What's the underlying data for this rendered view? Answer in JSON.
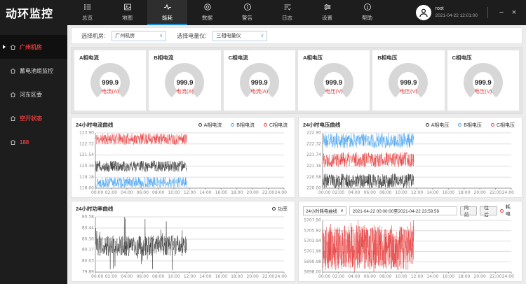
{
  "app": {
    "title": "动环监控"
  },
  "icons": {
    "chevron_down": "∨",
    "minimize": "−",
    "close": "×"
  },
  "colors": {
    "accent_blue": "#1e88e5",
    "alarm_red": "#e23b3b",
    "series_black": "#333333",
    "series_blue": "#4aa3f0",
    "series_red": "#e64040",
    "gauge_gray": "#d7d7d7"
  },
  "topbar": {
    "nav": [
      {
        "key": "overview",
        "label": "总览",
        "icon": "list",
        "active": false
      },
      {
        "key": "map",
        "label": "地图",
        "icon": "map",
        "active": false
      },
      {
        "key": "energy",
        "label": "能耗",
        "icon": "pulse",
        "active": true
      },
      {
        "key": "data",
        "label": "数据",
        "icon": "target",
        "active": false
      },
      {
        "key": "alerts",
        "label": "警告",
        "icon": "info-circle",
        "active": false
      },
      {
        "key": "logs",
        "label": "日志",
        "icon": "filter",
        "active": false
      },
      {
        "key": "settings",
        "label": "设置",
        "icon": "sliders",
        "active": false
      },
      {
        "key": "help",
        "label": "帮助",
        "icon": "help-circle",
        "active": false
      }
    ],
    "user": {
      "name": "root",
      "datetime": "2021-04-22 12:01:00"
    }
  },
  "sidebar": {
    "items": [
      {
        "label": "广州机房",
        "selected": true,
        "alarm": true
      },
      {
        "label": "蓄电池组监控",
        "selected": false,
        "alarm": false
      },
      {
        "label": "河东区委",
        "selected": false,
        "alarm": false
      },
      {
        "label": "空开状态",
        "selected": false,
        "alarm": true
      },
      {
        "label": "188",
        "selected": false,
        "alarm": true
      }
    ]
  },
  "filters": {
    "room_label": "选择机房:",
    "room_value": "广州机房",
    "meter_label": "选择电量仪:",
    "meter_value": "三相电量仪"
  },
  "gauges": [
    {
      "title": "A相电流",
      "value": "999.9",
      "unit_label": "电流(A)"
    },
    {
      "title": "B相电流",
      "value": "999.9",
      "unit_label": "电流(A)"
    },
    {
      "title": "C相电流",
      "value": "999.9",
      "unit_label": "电流(A)"
    },
    {
      "title": "A相电压",
      "value": "999.9",
      "unit_label": "电压(V)"
    },
    {
      "title": "B相电压",
      "value": "999.9",
      "unit_label": "电压(V)"
    },
    {
      "title": "C相电压",
      "value": "999.9",
      "unit_label": "电压(V)"
    }
  ],
  "chart_data": [
    {
      "type": "line",
      "title": "24小时电流曲线",
      "legend": [
        {
          "name": "A相电流",
          "color": "#333333"
        },
        {
          "name": "B相电流",
          "color": "#4aa3f0"
        },
        {
          "name": "C相电流",
          "color": "#e64040"
        }
      ],
      "ylim": [
        118.0,
        123.9
      ],
      "yticks": [
        "123.90",
        "122.72",
        "121.54",
        "120.36",
        "119.18",
        "118.00"
      ],
      "xticks": [
        "00:00",
        "02:00",
        "04:00",
        "06:00",
        "08:00",
        "10:00",
        "12:00",
        "14:00",
        "16:00",
        "18:00",
        "20:00",
        "22:00",
        "24:00"
      ],
      "x_range_hours": [
        0,
        24
      ],
      "data_end_hour": 11.6,
      "points": 420,
      "grid": true,
      "legend_position": "top-right",
      "series": [
        {
          "name": "C相电流",
          "color": "#e64040",
          "mean": 123.25,
          "amplitude": 0.6,
          "seed": 11
        },
        {
          "name": "A相电流",
          "color": "#333333",
          "mean": 120.35,
          "amplitude": 0.6,
          "seed": 12
        },
        {
          "name": "B相电流",
          "color": "#4aa3f0",
          "mean": 118.62,
          "amplitude": 0.58,
          "seed": 13
        }
      ]
    },
    {
      "type": "line",
      "title": "24小时电压曲线",
      "legend": [
        {
          "name": "A相电压",
          "color": "#333333"
        },
        {
          "name": "B相电压",
          "color": "#4aa3f0"
        },
        {
          "name": "C相电压",
          "color": "#e64040"
        }
      ],
      "ylim": [
        220.0,
        222.9
      ],
      "yticks": [
        "222.90",
        "222.32",
        "221.74",
        "221.16",
        "220.58",
        "220.00"
      ],
      "xticks": [
        "00:00",
        "02:00",
        "04:00",
        "06:00",
        "08:00",
        "10:00",
        "12:00",
        "14:00",
        "16:00",
        "18:00",
        "20:00",
        "22:00",
        "24:00"
      ],
      "x_range_hours": [
        0,
        24
      ],
      "data_end_hour": 11.6,
      "points": 420,
      "grid": true,
      "legend_position": "top-right",
      "series": [
        {
          "name": "B相电压",
          "color": "#4aa3f0",
          "mean": 222.5,
          "amplitude": 0.4,
          "seed": 21
        },
        {
          "name": "C相电压",
          "color": "#e64040",
          "mean": 221.5,
          "amplitude": 0.4,
          "seed": 22
        },
        {
          "name": "A相电压",
          "color": "#333333",
          "mean": 220.38,
          "amplitude": 0.38,
          "seed": 23
        }
      ]
    },
    {
      "type": "line",
      "title": "24小时功率曲线",
      "legend": [
        {
          "name": "功率",
          "color": "#333333"
        }
      ],
      "ylim": [
        79.89,
        80.58
      ],
      "yticks": [
        "80.58",
        "80.44",
        "80.30",
        "80.17",
        "80.03",
        "79.89"
      ],
      "xticks": [
        "00:00",
        "02:00",
        "04:00",
        "06:00",
        "08:00",
        "10:00",
        "12:00",
        "14:00",
        "16:00",
        "18:00",
        "20:00",
        "22:00",
        "24:00"
      ],
      "x_range_hours": [
        0,
        24
      ],
      "data_end_hour": 11.6,
      "points": 400,
      "grid": true,
      "legend_position": "top-right",
      "series": [
        {
          "name": "功率",
          "color": "#333333",
          "mean": 80.22,
          "amplitude": 0.13,
          "spike_prob": 0.1,
          "spike_amplitude": 0.3,
          "seed": 31
        }
      ]
    },
    {
      "type": "line",
      "title": "24小时耗电曲线",
      "controls": {
        "type_select": "24小时耗电曲线",
        "date_range": "2021-04-22 00:00:00至2021-04-22 23:59:59",
        "prev_label": "向前",
        "next_label": "往后"
      },
      "legend": [
        {
          "name": "耗电",
          "color": "#e64040"
        }
      ],
      "ylim": [
        5698.0,
        5707.9
      ],
      "yticks": [
        "5707.90",
        "5705.92",
        "5703.94",
        "5701.96",
        "5699.98",
        "5698.00"
      ],
      "xticks": [
        "00:00",
        "02:00",
        "04:00",
        "06:00",
        "08:00",
        "10:00",
        "12:00",
        "14:00",
        "16:00",
        "18:00",
        "20:00",
        "22:00",
        "24:00"
      ],
      "x_range_hours": [
        0,
        24
      ],
      "data_end_hour": 11.6,
      "points": 760,
      "grid": true,
      "legend_position": "top-right",
      "series": [
        {
          "name": "耗电",
          "color": "#e64040",
          "mean": 5702.7,
          "amplitude": 4.3,
          "spike_prob": 0.15,
          "spike_amplitude": 1.5,
          "seed": 41,
          "alpha": 0.8
        }
      ]
    }
  ]
}
